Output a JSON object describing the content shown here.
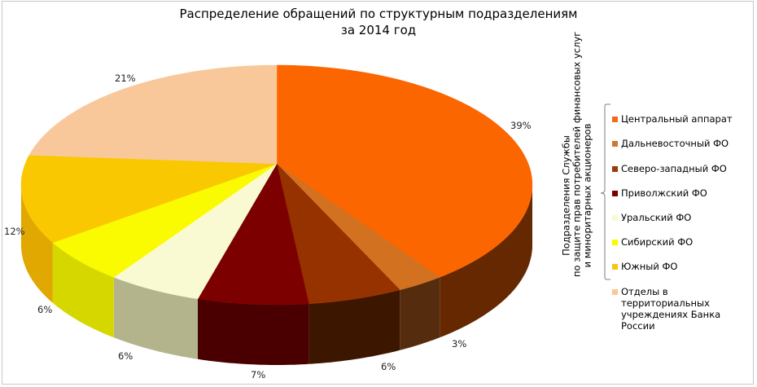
{
  "chart_data": {
    "type": "pie",
    "variant": "3d",
    "title": "Распределение обращений по структурным подразделениям за 2014 год",
    "title_lines": [
      "Распределение обращений по структурным подразделениям",
      "за 2014 год"
    ],
    "categories": [
      "Центральный аппарат",
      "Дальневосточный ФО",
      "Северо-западный ФО",
      "Приволжский ФО",
      "Уральский ФО",
      "Сибирский ФО",
      "Южный ФО",
      "Отделы в территориальных учреждениях Банка России"
    ],
    "values": [
      39,
      3,
      6,
      7,
      6,
      6,
      12,
      21
    ],
    "value_labels": [
      "39%",
      "3%",
      "6%",
      "7%",
      "6%",
      "6%",
      "12%",
      "21%"
    ],
    "unit": "%",
    "legend_position": "right",
    "legend_group_label": "Подразделения Службы по защите прав потребителей финансовых услуг и миноритарных акционеров",
    "legend_group_members": [
      0,
      1,
      2,
      3,
      4,
      5,
      6
    ]
  },
  "colors": {
    "top": [
      "#fc6600",
      "#d2711f",
      "#963200",
      "#7c0000",
      "#fafad2",
      "#fafa00",
      "#fac800",
      "#f8c89a"
    ],
    "side": [
      "#652800",
      "#552d0e",
      "#3d1600",
      "#4a0000",
      "#b4b48c",
      "#d7d700",
      "#e0a800",
      "#e0b48a"
    ]
  },
  "title": {
    "line1": "Распределение обращений по структурным подразделениям",
    "line2": "за 2014 год"
  },
  "legend": {
    "group_label_lines": [
      "Подразделения Службы",
      "по защите прав потребителей финансовых  услуг",
      "и миноритарных акционеров"
    ],
    "items": [
      {
        "label": "Центральный аппарат",
        "color": "#f26b1d"
      },
      {
        "label": "Дальневосточный ФО",
        "color": "#cd7834"
      },
      {
        "label": "Северо-западный ФО",
        "color": "#9a3a10"
      },
      {
        "label": "Приволжский ФО",
        "color": "#7c0000"
      },
      {
        "label": "Уральский ФО",
        "color": "#fafad2"
      },
      {
        "label": "Сибирский ФО",
        "color": "#fafa00"
      },
      {
        "label": "Южный ФО",
        "color": "#f5c518"
      },
      {
        "label": "Отделы в территориальных",
        "label2": "учреждениях Банка России",
        "color": "#f8c89a"
      }
    ]
  }
}
